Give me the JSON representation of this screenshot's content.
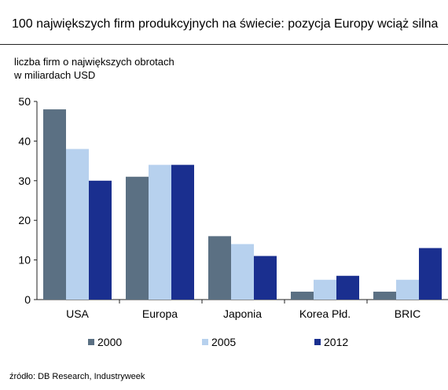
{
  "header": {
    "title": "100 największych firm produkcyjnych na świecie: pozycja Europy wciąż silna"
  },
  "footer": {
    "source": "źródło: DB Research, Industryweek"
  },
  "chart_data": {
    "type": "bar",
    "title": "100 największych firm produkcyjnych na świecie: pozycja Europy wciąż silna",
    "ylabel_lines": [
      "liczba firm o największych obrotach",
      "w miliardach USD"
    ],
    "xlabel": "",
    "categories": [
      "USA",
      "Europa",
      "Japonia",
      "Korea Płd.",
      "BRIC"
    ],
    "series": [
      {
        "name": "2000",
        "color": "#5b7083",
        "values": [
          48,
          31,
          16,
          2,
          2
        ]
      },
      {
        "name": "2005",
        "color": "#b7d1ee",
        "values": [
          38,
          34,
          14,
          5,
          5
        ]
      },
      {
        "name": "2012",
        "color": "#1a2f8f",
        "values": [
          30,
          34,
          11,
          6,
          13
        ]
      }
    ],
    "ylim": [
      0,
      50
    ],
    "yticks": [
      0,
      10,
      20,
      30,
      40,
      50
    ],
    "grid": false,
    "legend_position": "bottom"
  }
}
